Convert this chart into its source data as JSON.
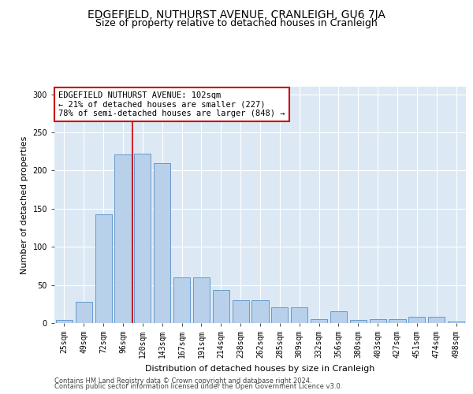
{
  "title": "EDGEFIELD, NUTHURST AVENUE, CRANLEIGH, GU6 7JA",
  "subtitle": "Size of property relative to detached houses in Cranleigh",
  "xlabel": "Distribution of detached houses by size in Cranleigh",
  "ylabel": "Number of detached properties",
  "categories": [
    "25sqm",
    "49sqm",
    "72sqm",
    "96sqm",
    "120sqm",
    "143sqm",
    "167sqm",
    "191sqm",
    "214sqm",
    "238sqm",
    "262sqm",
    "285sqm",
    "309sqm",
    "332sqm",
    "356sqm",
    "380sqm",
    "403sqm",
    "427sqm",
    "451sqm",
    "474sqm",
    "498sqm"
  ],
  "values": [
    4,
    28,
    143,
    221,
    222,
    210,
    60,
    60,
    43,
    30,
    30,
    21,
    21,
    5,
    15,
    4,
    5,
    5,
    8,
    8,
    2
  ],
  "bar_color": "#b8d0ea",
  "bar_edge_color": "#6699cc",
  "vline_color": "#cc0000",
  "vline_x_index": 3,
  "annotation_text_line1": "EDGEFIELD NUTHURST AVENUE: 102sqm",
  "annotation_text_line2": "← 21% of detached houses are smaller (227)",
  "annotation_text_line3": "78% of semi-detached houses are larger (848) →",
  "annotation_box_color": "#ffffff",
  "annotation_box_edge": "#cc0000",
  "ylim": [
    0,
    310
  ],
  "yticks": [
    0,
    50,
    100,
    150,
    200,
    250,
    300
  ],
  "footer1": "Contains HM Land Registry data © Crown copyright and database right 2024.",
  "footer2": "Contains public sector information licensed under the Open Government Licence v3.0.",
  "bg_color": "#dce9f5",
  "fig_bg_color": "#ffffff",
  "title_fontsize": 10,
  "subtitle_fontsize": 9,
  "axis_label_fontsize": 8,
  "tick_fontsize": 7,
  "annotation_fontsize": 7.5,
  "footer_fontsize": 6,
  "bar_width": 0.85
}
